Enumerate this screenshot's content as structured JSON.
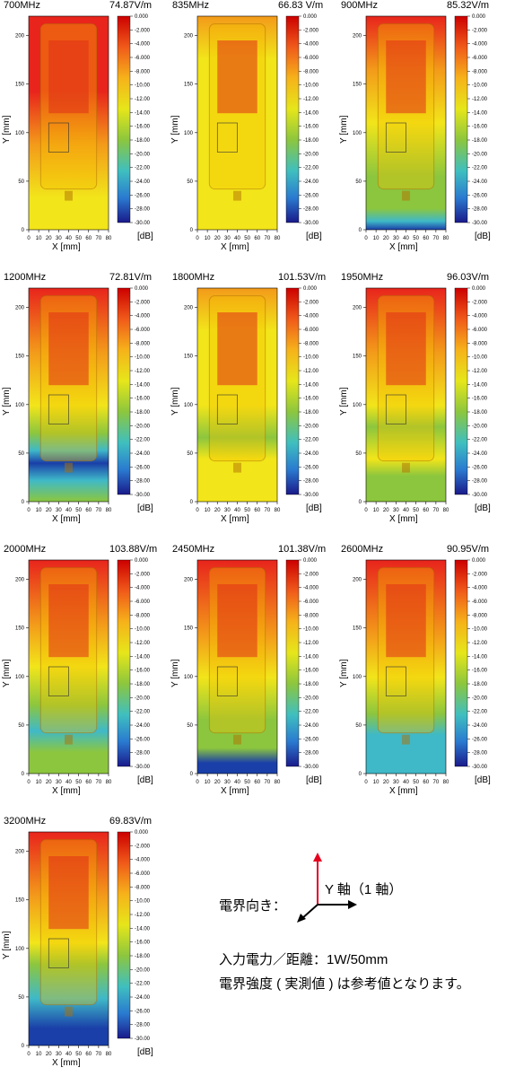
{
  "colorbar_ticks": [
    "0.000",
    "-2.000",
    "-4.000",
    "-6.000",
    "-8.000",
    "-10.00",
    "-12.00",
    "-14.00",
    "-16.00",
    "-18.00",
    "-20.00",
    "-22.00",
    "-24.00",
    "-26.00",
    "-28.00",
    "-30.00"
  ],
  "x_ticks": [
    "0",
    "10",
    "20",
    "30",
    "40",
    "50",
    "60",
    "70",
    "80"
  ],
  "y_ticks": [
    "0",
    "50",
    "100",
    "150",
    "200"
  ],
  "x_axis_label": "X [mm]",
  "y_axis_label": "Y [mm]",
  "unit_label": "[dB]",
  "chart_data": [
    {
      "type": "heatmap",
      "title": "700MHz",
      "max_value": "74.87V/m",
      "xlim": [
        0,
        80
      ],
      "ylim": [
        0,
        220
      ],
      "zlim": [
        -30,
        0
      ],
      "zunit": "dB"
    },
    {
      "type": "heatmap",
      "title": "835MHz",
      "max_value": "66.83 V/m",
      "xlim": [
        0,
        80
      ],
      "ylim": [
        0,
        220
      ],
      "zlim": [
        -30,
        0
      ],
      "zunit": "dB"
    },
    {
      "type": "heatmap",
      "title": "900MHz",
      "max_value": "85.32V/m",
      "xlim": [
        0,
        80
      ],
      "ylim": [
        0,
        220
      ],
      "zlim": [
        -30,
        0
      ],
      "zunit": "dB"
    },
    {
      "type": "heatmap",
      "title": "1200MHz",
      "max_value": "72.81V/m",
      "xlim": [
        0,
        80
      ],
      "ylim": [
        0,
        220
      ],
      "zlim": [
        -30,
        0
      ],
      "zunit": "dB"
    },
    {
      "type": "heatmap",
      "title": "1800MHz",
      "max_value": "101.53V/m",
      "xlim": [
        0,
        80
      ],
      "ylim": [
        0,
        220
      ],
      "zlim": [
        -30,
        0
      ],
      "zunit": "dB"
    },
    {
      "type": "heatmap",
      "title": "1950MHz",
      "max_value": "96.03V/m",
      "xlim": [
        0,
        80
      ],
      "ylim": [
        0,
        220
      ],
      "zlim": [
        -30,
        0
      ],
      "zunit": "dB"
    },
    {
      "type": "heatmap",
      "title": "2000MHz",
      "max_value": "103.88V/m",
      "xlim": [
        0,
        80
      ],
      "ylim": [
        0,
        220
      ],
      "zlim": [
        -30,
        0
      ],
      "zunit": "dB"
    },
    {
      "type": "heatmap",
      "title": "2450MHz",
      "max_value": "101.38V/m",
      "xlim": [
        0,
        80
      ],
      "ylim": [
        0,
        220
      ],
      "zlim": [
        -30,
        0
      ],
      "zunit": "dB"
    },
    {
      "type": "heatmap",
      "title": "2600MHz",
      "max_value": "90.95V/m",
      "xlim": [
        0,
        80
      ],
      "ylim": [
        0,
        220
      ],
      "zlim": [
        -30,
        0
      ],
      "zunit": "dB"
    },
    {
      "type": "heatmap",
      "title": "3200MHz",
      "max_value": "69.83V/m",
      "xlim": [
        0,
        80
      ],
      "ylim": [
        0,
        220
      ],
      "zlim": [
        -30,
        0
      ],
      "zunit": "dB"
    }
  ],
  "legend": {
    "field_direction_label": "電界向き：",
    "y_axis_label": "Y 軸（1 軸）",
    "input_power": "入力電力／距離：1W/50mm",
    "disclaimer": "電界強度 ( 実測値 ) は参考値となります。"
  },
  "colors": {
    "red": "#e8241c",
    "orange": "#f39a1a",
    "yellow": "#f2e51a",
    "green": "#8cc63e",
    "cyan": "#3fb9c8",
    "blue": "#1a3fa8",
    "arrow_red": "#e6001f"
  }
}
